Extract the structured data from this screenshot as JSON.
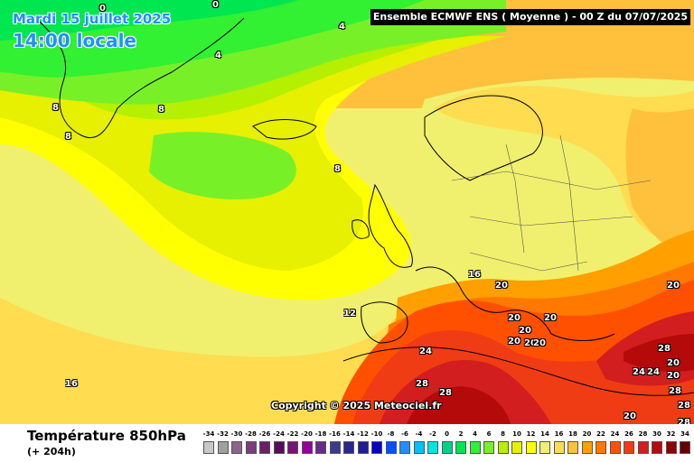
{
  "header": {
    "date": "Mardi 15 juillet 2025",
    "time": "14:00 locale",
    "run": "Ensemble ECMWF ENS  ( Moyenne )  -  00 Z du 07/07/2025"
  },
  "copyright": "Copyright © 2025 Meteociel.fr",
  "parameter": {
    "title": "Température 850hPa",
    "subtitle": "(+ 204h)"
  },
  "scale": {
    "labels": [
      "-34",
      "-32",
      "-30",
      "-28",
      "-26",
      "-24",
      "-22",
      "-20",
      "-18",
      "-16",
      "-14",
      "-12",
      "-10",
      "-8",
      "-6",
      "-4",
      "-2",
      "0",
      "2",
      "4",
      "6",
      "8",
      "10",
      "12",
      "14",
      "16",
      "18",
      "20",
      "22",
      "24",
      "26",
      "28",
      "30",
      "32",
      "34"
    ],
    "colors": [
      "#c8c8c8",
      "#a0a0a0",
      "#8c648c",
      "#7d3c7d",
      "#6e1e6e",
      "#5a0a5a",
      "#781478",
      "#960096",
      "#6a2a8a",
      "#3c3c8c",
      "#28288c",
      "#1e1e96",
      "#0000c8",
      "#0050ff",
      "#1e90ff",
      "#00c0ff",
      "#00e6e6",
      "#00d28c",
      "#00e650",
      "#32f032",
      "#78f028",
      "#b4f000",
      "#e6f000",
      "#ffff00",
      "#f0f06e",
      "#ffdc50",
      "#ffc03c",
      "#ffa000",
      "#ff7800",
      "#ff5000",
      "#f03c14",
      "#d21e1e",
      "#b40a0a",
      "#8c0000",
      "#640000"
    ]
  },
  "contour_labels": [
    {
      "text": "0"
    },
    {
      "text": "0"
    },
    {
      "text": "4"
    },
    {
      "text": "4"
    },
    {
      "text": "8"
    },
    {
      "text": "8"
    },
    {
      "text": "8"
    },
    {
      "text": "8"
    },
    {
      "text": "12"
    },
    {
      "text": "16"
    },
    {
      "text": "16"
    },
    {
      "text": "20"
    },
    {
      "text": "20"
    },
    {
      "text": "20"
    },
    {
      "text": "20"
    },
    {
      "text": "20"
    },
    {
      "text": "20"
    },
    {
      "text": "20"
    },
    {
      "text": "24"
    },
    {
      "text": "28"
    },
    {
      "text": "28"
    },
    {
      "text": "28"
    },
    {
      "text": "24"
    },
    {
      "text": "24"
    },
    {
      "text": "20"
    },
    {
      "text": "20"
    },
    {
      "text": "28"
    },
    {
      "text": "28"
    },
    {
      "text": "20"
    },
    {
      "text": "28"
    },
    {
      "text": "20"
    }
  ]
}
